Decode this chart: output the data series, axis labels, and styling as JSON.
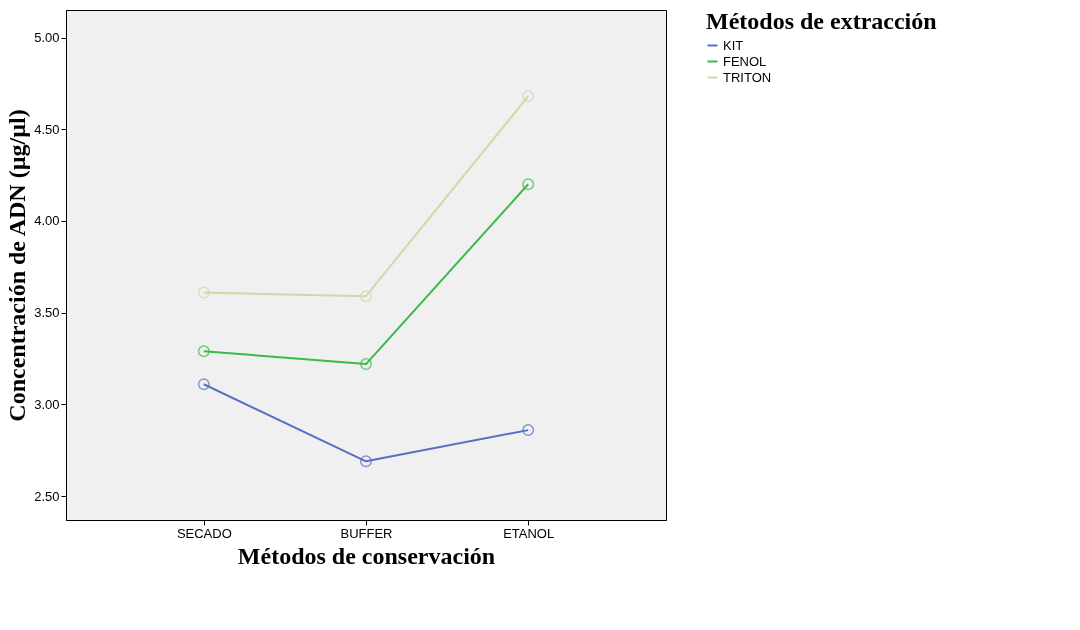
{
  "chart_data": {
    "type": "line",
    "xlabel": "Métodos de conservación",
    "ylabel": "Concentración de ADN (µg/µl)",
    "legend_title": "Métodos de extracción",
    "categories": [
      "SECADO",
      "BUFFER",
      "ETANOL"
    ],
    "series": [
      {
        "name": "KIT",
        "color": "#5a6fc4",
        "values": [
          3.11,
          2.69,
          2.86
        ]
      },
      {
        "name": "FENOL",
        "color": "#3cb94a",
        "values": [
          3.29,
          3.22,
          4.2
        ]
      },
      {
        "name": "TRITON",
        "color": "#d8d4a8",
        "values": [
          3.61,
          3.59,
          4.68
        ]
      }
    ],
    "ylim": [
      2.37,
      5.15
    ],
    "yticks": [
      {
        "value": 2.5,
        "label": "2.50"
      },
      {
        "value": 3.0,
        "label": "3.00"
      },
      {
        "value": 3.5,
        "label": "3.50"
      },
      {
        "value": 4.0,
        "label": "4.00"
      },
      {
        "value": 4.5,
        "label": "4.50"
      },
      {
        "value": 5.0,
        "label": "5.00"
      }
    ],
    "grid": false,
    "legend": "top right",
    "marker": "circle",
    "line_style": "solid"
  }
}
